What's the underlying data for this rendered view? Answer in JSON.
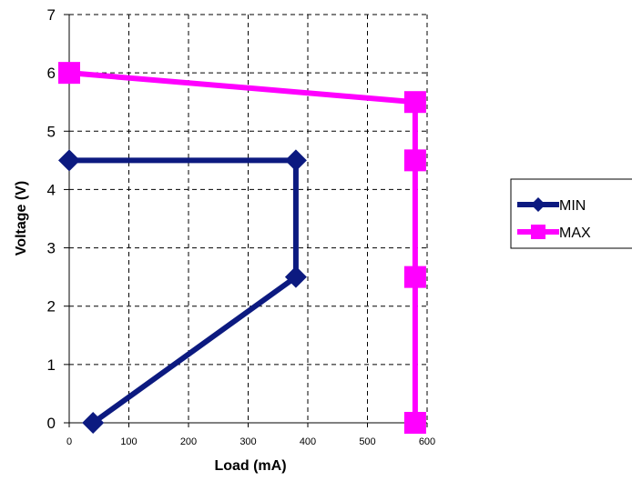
{
  "chart_data": {
    "type": "scatter",
    "xlabel": "Load (mA)",
    "ylabel": "Voltage (V)",
    "xlim": [
      0,
      600
    ],
    "ylim": [
      0,
      7
    ],
    "xticks": [
      0,
      100,
      200,
      300,
      400,
      500,
      600
    ],
    "yticks": [
      0,
      1,
      2,
      3,
      4,
      5,
      6,
      7
    ],
    "grid": true,
    "legend_position": "right",
    "series": [
      {
        "name": "MIN",
        "color": "#0c1a80",
        "marker": "diamond",
        "x": [
          40,
          380,
          380,
          0
        ],
        "y": [
          0,
          2.5,
          4.5,
          4.5
        ]
      },
      {
        "name": "MAX",
        "color": "#ff00ff",
        "marker": "square",
        "x": [
          580,
          580,
          580,
          580,
          0
        ],
        "y": [
          0,
          2.5,
          4.5,
          5.5,
          6
        ]
      }
    ]
  }
}
